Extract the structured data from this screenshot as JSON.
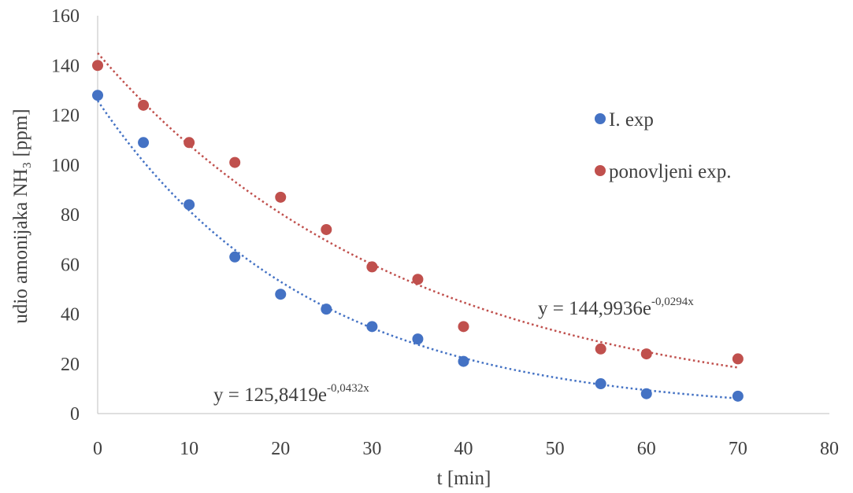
{
  "chart_data": {
    "type": "scatter",
    "title": "",
    "xlabel": "t [min]",
    "ylabel": "udio amonijaka NH₃  [ppm]",
    "xlim": [
      0,
      80
    ],
    "ylim": [
      0,
      160
    ],
    "xticks": [
      "0",
      "10",
      "20",
      "30",
      "40",
      "50",
      "60",
      "70",
      "80"
    ],
    "yticks": [
      "0",
      "20",
      "40",
      "60",
      "80",
      "100",
      "120",
      "140",
      "160"
    ],
    "grid": false,
    "legend_position": "right",
    "series": [
      {
        "name": "I. exp",
        "color": "#4472C4",
        "x": [
          0,
          5,
          10,
          15,
          20,
          25,
          30,
          35,
          40,
          55,
          60,
          70
        ],
        "y": [
          128,
          109,
          84,
          63,
          48,
          42,
          35,
          30,
          21,
          12,
          8,
          7
        ],
        "trendline": {
          "type": "exponential",
          "a": 125.8419,
          "b": -0.0432,
          "color": "#4472C4",
          "label_main": "y = 125,8419e",
          "label_exp": "-0,0432x"
        }
      },
      {
        "name": "ponovljeni exp.",
        "color": "#C0504D",
        "x": [
          0,
          5,
          10,
          15,
          20,
          25,
          30,
          35,
          40,
          55,
          60,
          70
        ],
        "y": [
          140,
          124,
          109,
          101,
          87,
          74,
          59,
          54,
          35,
          26,
          24,
          22
        ],
        "trendline": {
          "type": "exponential",
          "a": 144.9936,
          "b": -0.0294,
          "color": "#C0504D",
          "label_main": "y = 144,9936e",
          "label_exp": "-0,0294x"
        }
      }
    ]
  }
}
